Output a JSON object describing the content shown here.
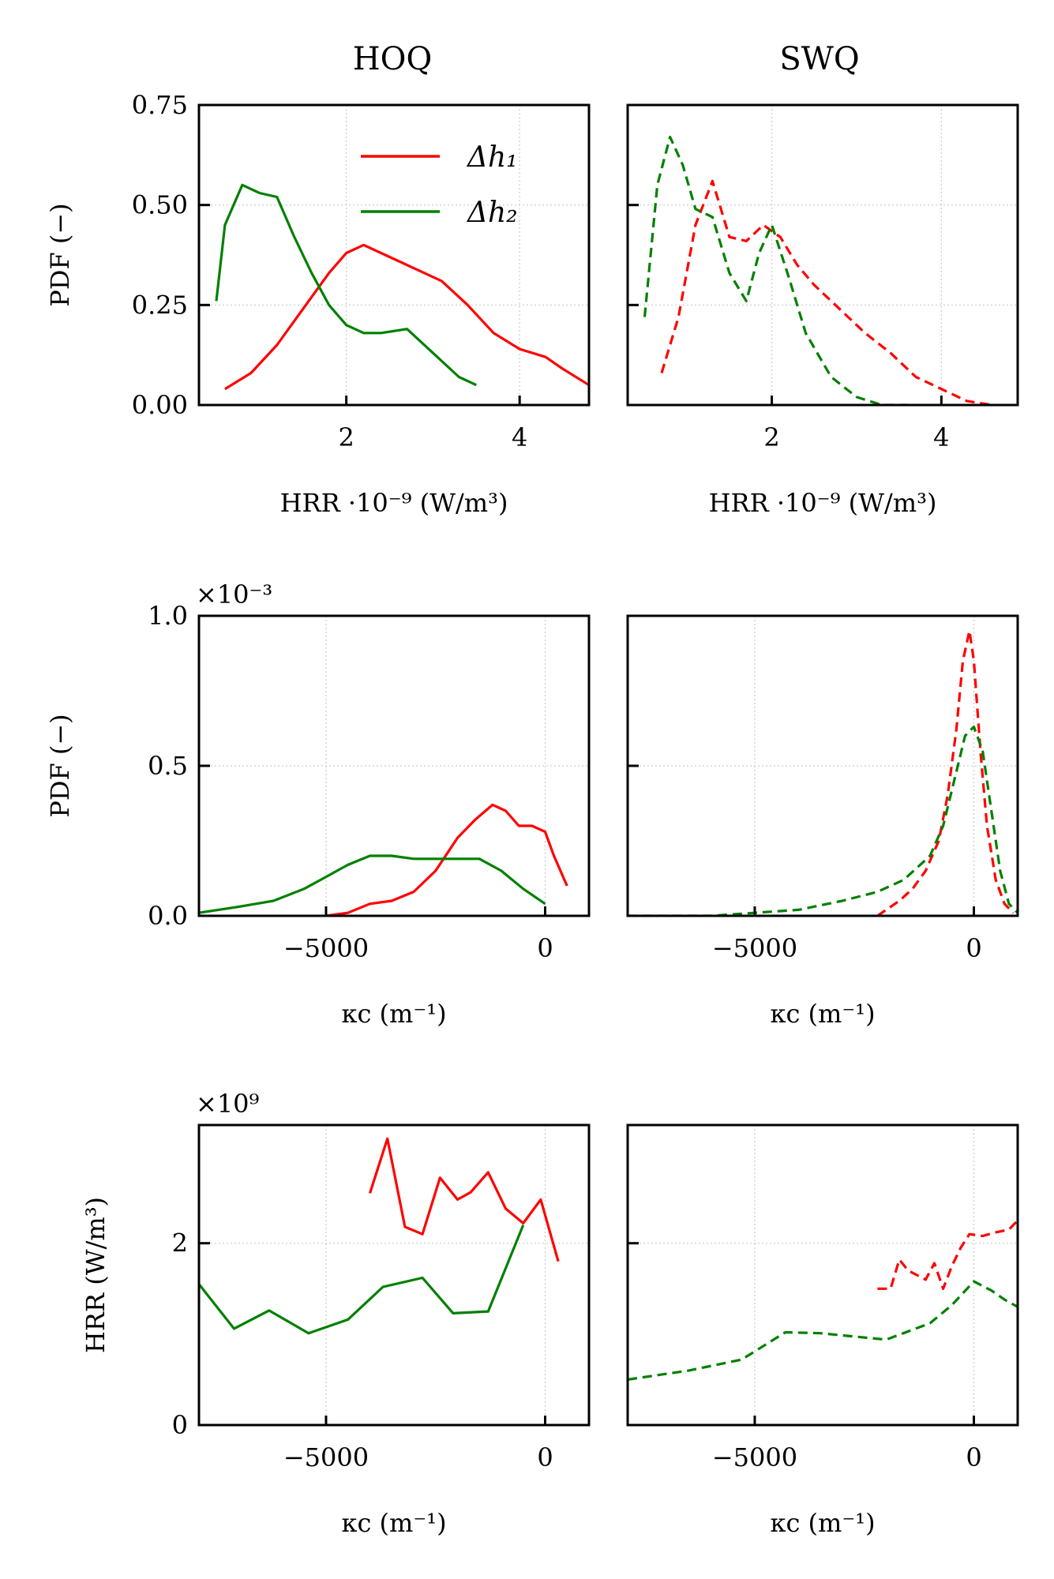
{
  "columns": [
    "HOQ",
    "SWQ"
  ],
  "legend": {
    "position": "upper-right",
    "panel": 0,
    "entries": [
      {
        "name": "Δh₁",
        "color": "#ff0000"
      },
      {
        "name": "Δh₂",
        "color": "#008000"
      }
    ]
  },
  "chart_data": [
    {
      "type": "line",
      "panel": "top-left",
      "title": "HOQ",
      "xlabel": "HRR ·10⁻⁹ (W/m³)",
      "ylabel": "PDF (−)",
      "xlim": [
        0.3,
        4.8
      ],
      "ylim": [
        0,
        0.75
      ],
      "xticks": [
        2,
        4
      ],
      "yticks": [
        0,
        0.25,
        0.5,
        0.75
      ],
      "ytick_labels": [
        "0.00",
        "0.25",
        "0.50",
        "0.75"
      ],
      "show_ytick_labels": true,
      "offset_text": "",
      "grid": true,
      "linestyle": "solid",
      "series": [
        {
          "name": "Δh₁",
          "color": "#ff0000",
          "x": [
            0.6,
            0.9,
            1.2,
            1.5,
            1.8,
            2.0,
            2.2,
            2.5,
            2.8,
            3.1,
            3.4,
            3.7,
            4.0,
            4.3,
            4.5,
            4.8
          ],
          "y": [
            0.04,
            0.08,
            0.15,
            0.24,
            0.33,
            0.38,
            0.4,
            0.37,
            0.34,
            0.31,
            0.25,
            0.18,
            0.14,
            0.12,
            0.09,
            0.05
          ]
        },
        {
          "name": "Δh₂",
          "color": "#008000",
          "x": [
            0.5,
            0.6,
            0.8,
            1.0,
            1.2,
            1.4,
            1.6,
            1.8,
            2.0,
            2.2,
            2.4,
            2.7,
            3.0,
            3.3,
            3.5
          ],
          "y": [
            0.26,
            0.45,
            0.55,
            0.53,
            0.52,
            0.42,
            0.33,
            0.25,
            0.2,
            0.18,
            0.18,
            0.19,
            0.13,
            0.07,
            0.05
          ]
        }
      ]
    },
    {
      "type": "line",
      "panel": "top-right",
      "title": "SWQ",
      "xlabel": "HRR ·10⁻⁹ (W/m³)",
      "ylabel": "",
      "xlim": [
        0.3,
        4.9
      ],
      "ylim": [
        0,
        0.75
      ],
      "xticks": [
        2,
        4
      ],
      "yticks": [
        0,
        0.25,
        0.5,
        0.75
      ],
      "ytick_labels": [
        "0.00",
        "0.25",
        "0.50",
        "0.75"
      ],
      "show_ytick_labels": false,
      "offset_text": "",
      "grid": true,
      "linestyle": "dashed",
      "series": [
        {
          "name": "Δh₁",
          "color": "#ff0000",
          "x": [
            0.7,
            0.9,
            1.1,
            1.3,
            1.5,
            1.7,
            1.9,
            2.1,
            2.3,
            2.5,
            2.8,
            3.1,
            3.4,
            3.7,
            4.0,
            4.3,
            4.6
          ],
          "y": [
            0.08,
            0.22,
            0.45,
            0.56,
            0.42,
            0.41,
            0.45,
            0.42,
            0.35,
            0.3,
            0.24,
            0.18,
            0.13,
            0.07,
            0.04,
            0.01,
            0.0
          ]
        },
        {
          "name": "Δh₂",
          "color": "#008000",
          "x": [
            0.5,
            0.65,
            0.8,
            0.95,
            1.1,
            1.3,
            1.5,
            1.7,
            1.85,
            2.0,
            2.2,
            2.4,
            2.7,
            3.0,
            3.3,
            3.6
          ],
          "y": [
            0.22,
            0.55,
            0.67,
            0.6,
            0.49,
            0.47,
            0.33,
            0.26,
            0.38,
            0.45,
            0.32,
            0.18,
            0.07,
            0.02,
            0.0,
            0.0
          ]
        }
      ]
    },
    {
      "type": "line",
      "panel": "middle-left",
      "title": "",
      "xlabel": "κc (m⁻¹)",
      "ylabel": "PDF (−)",
      "xlim": [
        -7900,
        1000
      ],
      "ylim": [
        0,
        1.0
      ],
      "xticks": [
        -5000,
        0
      ],
      "yticks": [
        0,
        0.5,
        1.0
      ],
      "ytick_labels": [
        "0.0",
        "0.5",
        "1.0"
      ],
      "show_ytick_labels": true,
      "offset_text": "×10⁻³",
      "grid": true,
      "linestyle": "solid",
      "series": [
        {
          "name": "Δh₁",
          "color": "#ff0000",
          "x": [
            -5000,
            -4500,
            -4000,
            -3500,
            -3000,
            -2500,
            -2000,
            -1600,
            -1200,
            -900,
            -600,
            -300,
            0,
            200,
            500
          ],
          "y": [
            0.0,
            0.01,
            0.04,
            0.05,
            0.08,
            0.15,
            0.26,
            0.32,
            0.37,
            0.35,
            0.3,
            0.3,
            0.28,
            0.2,
            0.1
          ]
        },
        {
          "name": "Δh₂",
          "color": "#008000",
          "x": [
            -7900,
            -7000,
            -6200,
            -5500,
            -5000,
            -4500,
            -4000,
            -3500,
            -3000,
            -2500,
            -2000,
            -1500,
            -1000,
            -500,
            0
          ],
          "y": [
            0.01,
            0.03,
            0.05,
            0.09,
            0.13,
            0.17,
            0.2,
            0.2,
            0.19,
            0.19,
            0.19,
            0.19,
            0.15,
            0.09,
            0.04
          ]
        }
      ]
    },
    {
      "type": "line",
      "panel": "middle-right",
      "title": "",
      "xlabel": "κc (m⁻¹)",
      "ylabel": "",
      "xlim": [
        -7900,
        1000
      ],
      "ylim": [
        0,
        1.0
      ],
      "xticks": [
        -5000,
        0
      ],
      "yticks": [
        0,
        0.5,
        1.0
      ],
      "ytick_labels": [
        "0.0",
        "0.5",
        "1.0"
      ],
      "show_ytick_labels": false,
      "offset_text": "",
      "grid": true,
      "linestyle": "dashed",
      "series": [
        {
          "name": "Δh₁",
          "color": "#ff0000",
          "x": [
            -2200,
            -2000,
            -1700,
            -1400,
            -1100,
            -800,
            -600,
            -400,
            -250,
            -100,
            0,
            150,
            300,
            500,
            700,
            900
          ],
          "y": [
            0.0,
            0.02,
            0.05,
            0.09,
            0.15,
            0.25,
            0.4,
            0.62,
            0.85,
            0.95,
            0.85,
            0.55,
            0.3,
            0.12,
            0.04,
            0.01
          ]
        },
        {
          "name": "Δh₂",
          "color": "#008000",
          "x": [
            -7900,
            -6000,
            -5000,
            -4000,
            -3000,
            -2200,
            -1600,
            -1000,
            -700,
            -400,
            -200,
            0,
            200,
            400,
            600,
            800,
            1000
          ],
          "y": [
            0.0,
            0.0,
            0.01,
            0.02,
            0.05,
            0.08,
            0.12,
            0.2,
            0.3,
            0.48,
            0.6,
            0.63,
            0.55,
            0.35,
            0.15,
            0.04,
            0.01
          ]
        }
      ]
    },
    {
      "type": "line",
      "panel": "bottom-left",
      "title": "",
      "xlabel": "κc (m⁻¹)",
      "ylabel": "HRR (W/m³)",
      "xlim": [
        -7900,
        1000
      ],
      "ylim": [
        0,
        3.3
      ],
      "xticks": [
        -5000,
        0
      ],
      "yticks": [
        0,
        2
      ],
      "ytick_labels": [
        "0",
        "2"
      ],
      "show_ytick_labels": true,
      "offset_text": "×10⁹",
      "grid": true,
      "linestyle": "solid",
      "series": [
        {
          "name": "Δh₁",
          "color": "#ff0000",
          "x": [
            -4000,
            -3600,
            -3200,
            -2800,
            -2400,
            -2000,
            -1700,
            -1300,
            -900,
            -500,
            -100,
            300
          ],
          "y": [
            2.55,
            3.15,
            2.18,
            2.1,
            2.72,
            2.48,
            2.56,
            2.78,
            2.38,
            2.22,
            2.48,
            1.8
          ]
        },
        {
          "name": "Δh₂",
          "color": "#008000",
          "x": [
            -7900,
            -7100,
            -6300,
            -5400,
            -4500,
            -3700,
            -2800,
            -2100,
            -1300,
            -500
          ],
          "y": [
            1.55,
            1.06,
            1.26,
            1.01,
            1.16,
            1.52,
            1.62,
            1.23,
            1.25,
            2.2
          ]
        }
      ]
    },
    {
      "type": "line",
      "panel": "bottom-right",
      "title": "",
      "xlabel": "κc (m⁻¹)",
      "ylabel": "",
      "xlim": [
        -7900,
        1000
      ],
      "ylim": [
        0,
        3.3
      ],
      "xticks": [
        -5000,
        0
      ],
      "yticks": [
        0,
        2
      ],
      "ytick_labels": [
        "0",
        "2"
      ],
      "show_ytick_labels": false,
      "offset_text": "",
      "grid": true,
      "linestyle": "dashed",
      "series": [
        {
          "name": "Δh₁",
          "color": "#ff0000",
          "x": [
            -2200,
            -1900,
            -1700,
            -1500,
            -1300,
            -1100,
            -900,
            -700,
            -500,
            -300,
            -100,
            200,
            500,
            800,
            1000
          ],
          "y": [
            1.5,
            1.5,
            1.82,
            1.7,
            1.65,
            1.6,
            1.78,
            1.5,
            1.75,
            1.95,
            2.1,
            2.08,
            2.12,
            2.15,
            2.25
          ]
        },
        {
          "name": "Δh₂",
          "color": "#008000",
          "x": [
            -7900,
            -6500,
            -5300,
            -4300,
            -3500,
            -2000,
            -1000,
            -500,
            0,
            400,
            700,
            1000
          ],
          "y": [
            0.5,
            0.6,
            0.72,
            1.02,
            1.01,
            0.94,
            1.12,
            1.32,
            1.58,
            1.48,
            1.38,
            1.3
          ]
        }
      ]
    }
  ]
}
